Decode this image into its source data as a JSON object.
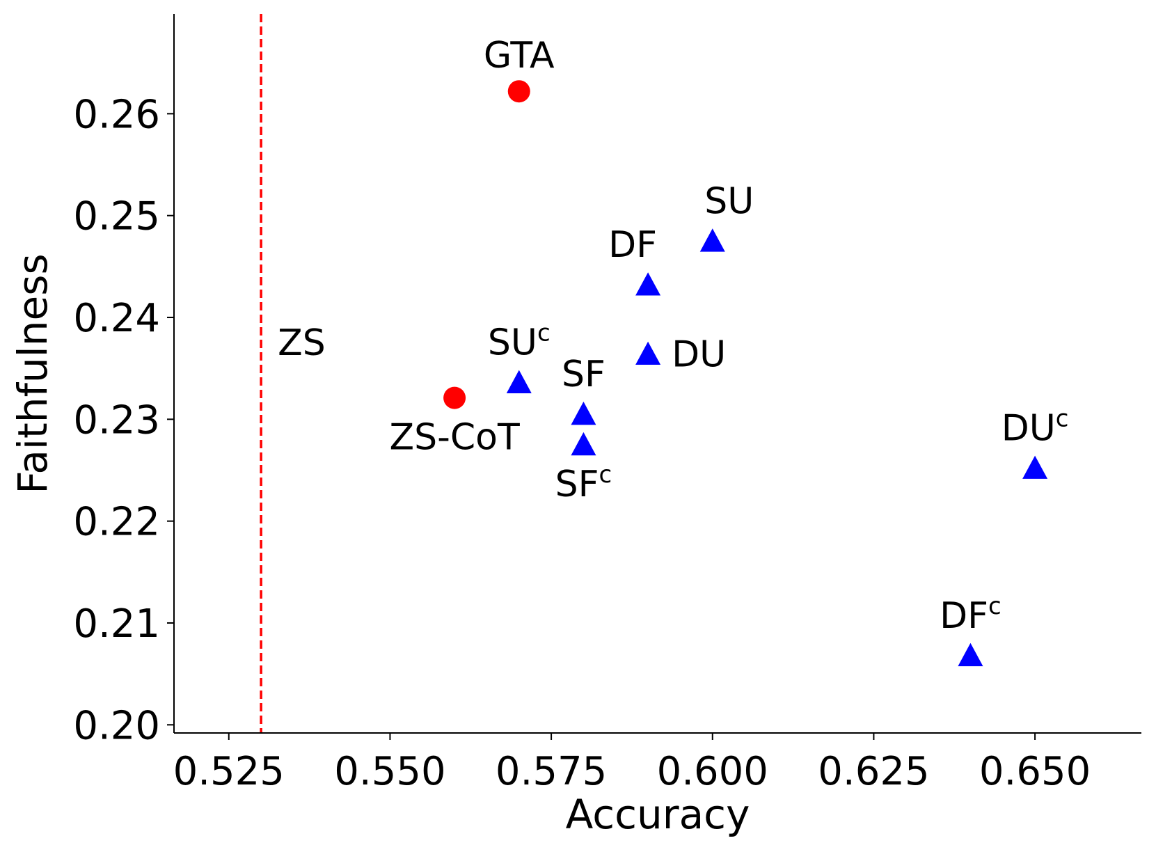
{
  "chart_data": {
    "type": "scatter",
    "title": "",
    "xlabel": "Accuracy",
    "ylabel": "Faithfulness",
    "xlim": [
      0.5165,
      0.6665
    ],
    "ylim": [
      0.1992,
      0.2698
    ],
    "xticks": [
      0.525,
      0.55,
      0.575,
      0.6,
      0.625,
      0.65
    ],
    "xtick_labels": [
      "0.525",
      "0.550",
      "0.575",
      "0.600",
      "0.625",
      "0.650"
    ],
    "yticks": [
      0.2,
      0.21,
      0.22,
      0.23,
      0.24,
      0.25,
      0.26
    ],
    "ytick_labels": [
      "0.20",
      "0.21",
      "0.22",
      "0.23",
      "0.24",
      "0.25",
      "0.26"
    ],
    "grid": false,
    "reference_line": {
      "orientation": "vertical",
      "x": 0.53,
      "label": "ZS",
      "color": "#ff0000",
      "style": "dashed"
    },
    "series": [
      {
        "name": "baselines",
        "marker": "circle",
        "color": "#ff0000",
        "points": [
          {
            "label": "GTA",
            "sup": "",
            "x": 0.57,
            "y": 0.2622,
            "anchor": "above"
          },
          {
            "label": "ZS-CoT",
            "sup": "",
            "x": 0.56,
            "y": 0.2321,
            "anchor": "below"
          }
        ]
      },
      {
        "name": "methods",
        "marker": "triangle",
        "color": "#0000ff",
        "points": [
          {
            "label": "SU",
            "sup": "",
            "x": 0.6,
            "y": 0.2475,
            "anchor": "above-right"
          },
          {
            "label": "DF",
            "sup": "",
            "x": 0.59,
            "y": 0.2432,
            "anchor": "above-left"
          },
          {
            "label": "DU",
            "sup": "",
            "x": 0.59,
            "y": 0.2364,
            "anchor": "right"
          },
          {
            "label": "SU",
            "sup": "c",
            "x": 0.57,
            "y": 0.2336,
            "anchor": "above"
          },
          {
            "label": "SF",
            "sup": "",
            "x": 0.58,
            "y": 0.2305,
            "anchor": "above"
          },
          {
            "label": "SF",
            "sup": "c",
            "x": 0.58,
            "y": 0.2275,
            "anchor": "below"
          },
          {
            "label": "DU",
            "sup": "c",
            "x": 0.65,
            "y": 0.2252,
            "anchor": "above"
          },
          {
            "label": "DF",
            "sup": "c",
            "x": 0.64,
            "y": 0.2068,
            "anchor": "above"
          }
        ]
      }
    ]
  }
}
